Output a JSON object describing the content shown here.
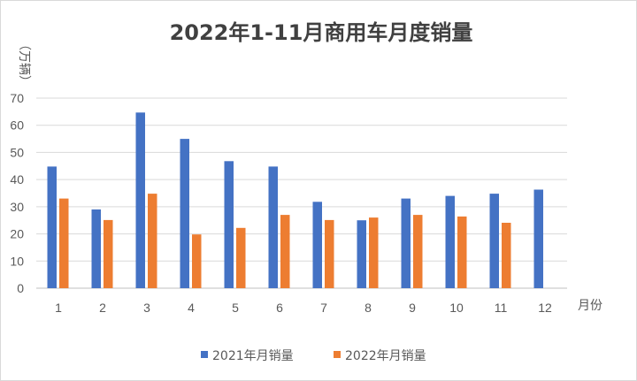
{
  "chart_data": {
    "type": "bar",
    "title": "2022年1-11月商用车月度销量",
    "xlabel": "月份",
    "ylabel": "（万辆）",
    "ylim": [
      0,
      70
    ],
    "yticks": [
      0,
      10,
      20,
      30,
      40,
      50,
      60,
      70
    ],
    "grid": true,
    "legend_position": "bottom",
    "categories": [
      "1",
      "2",
      "3",
      "4",
      "5",
      "6",
      "7",
      "8",
      "9",
      "10",
      "11",
      "12"
    ],
    "series": [
      {
        "name": "2021年月销量",
        "color": "#4472c4",
        "values": [
          44.8,
          29,
          64.7,
          55,
          46.8,
          44.8,
          31.8,
          25,
          33,
          34,
          34.8,
          36.3
        ]
      },
      {
        "name": "2022年月销量",
        "color": "#ed7d31",
        "values": [
          33,
          25.1,
          34.8,
          19.8,
          22.2,
          27,
          25.1,
          26,
          27,
          26.4,
          24.1,
          null
        ]
      }
    ]
  }
}
